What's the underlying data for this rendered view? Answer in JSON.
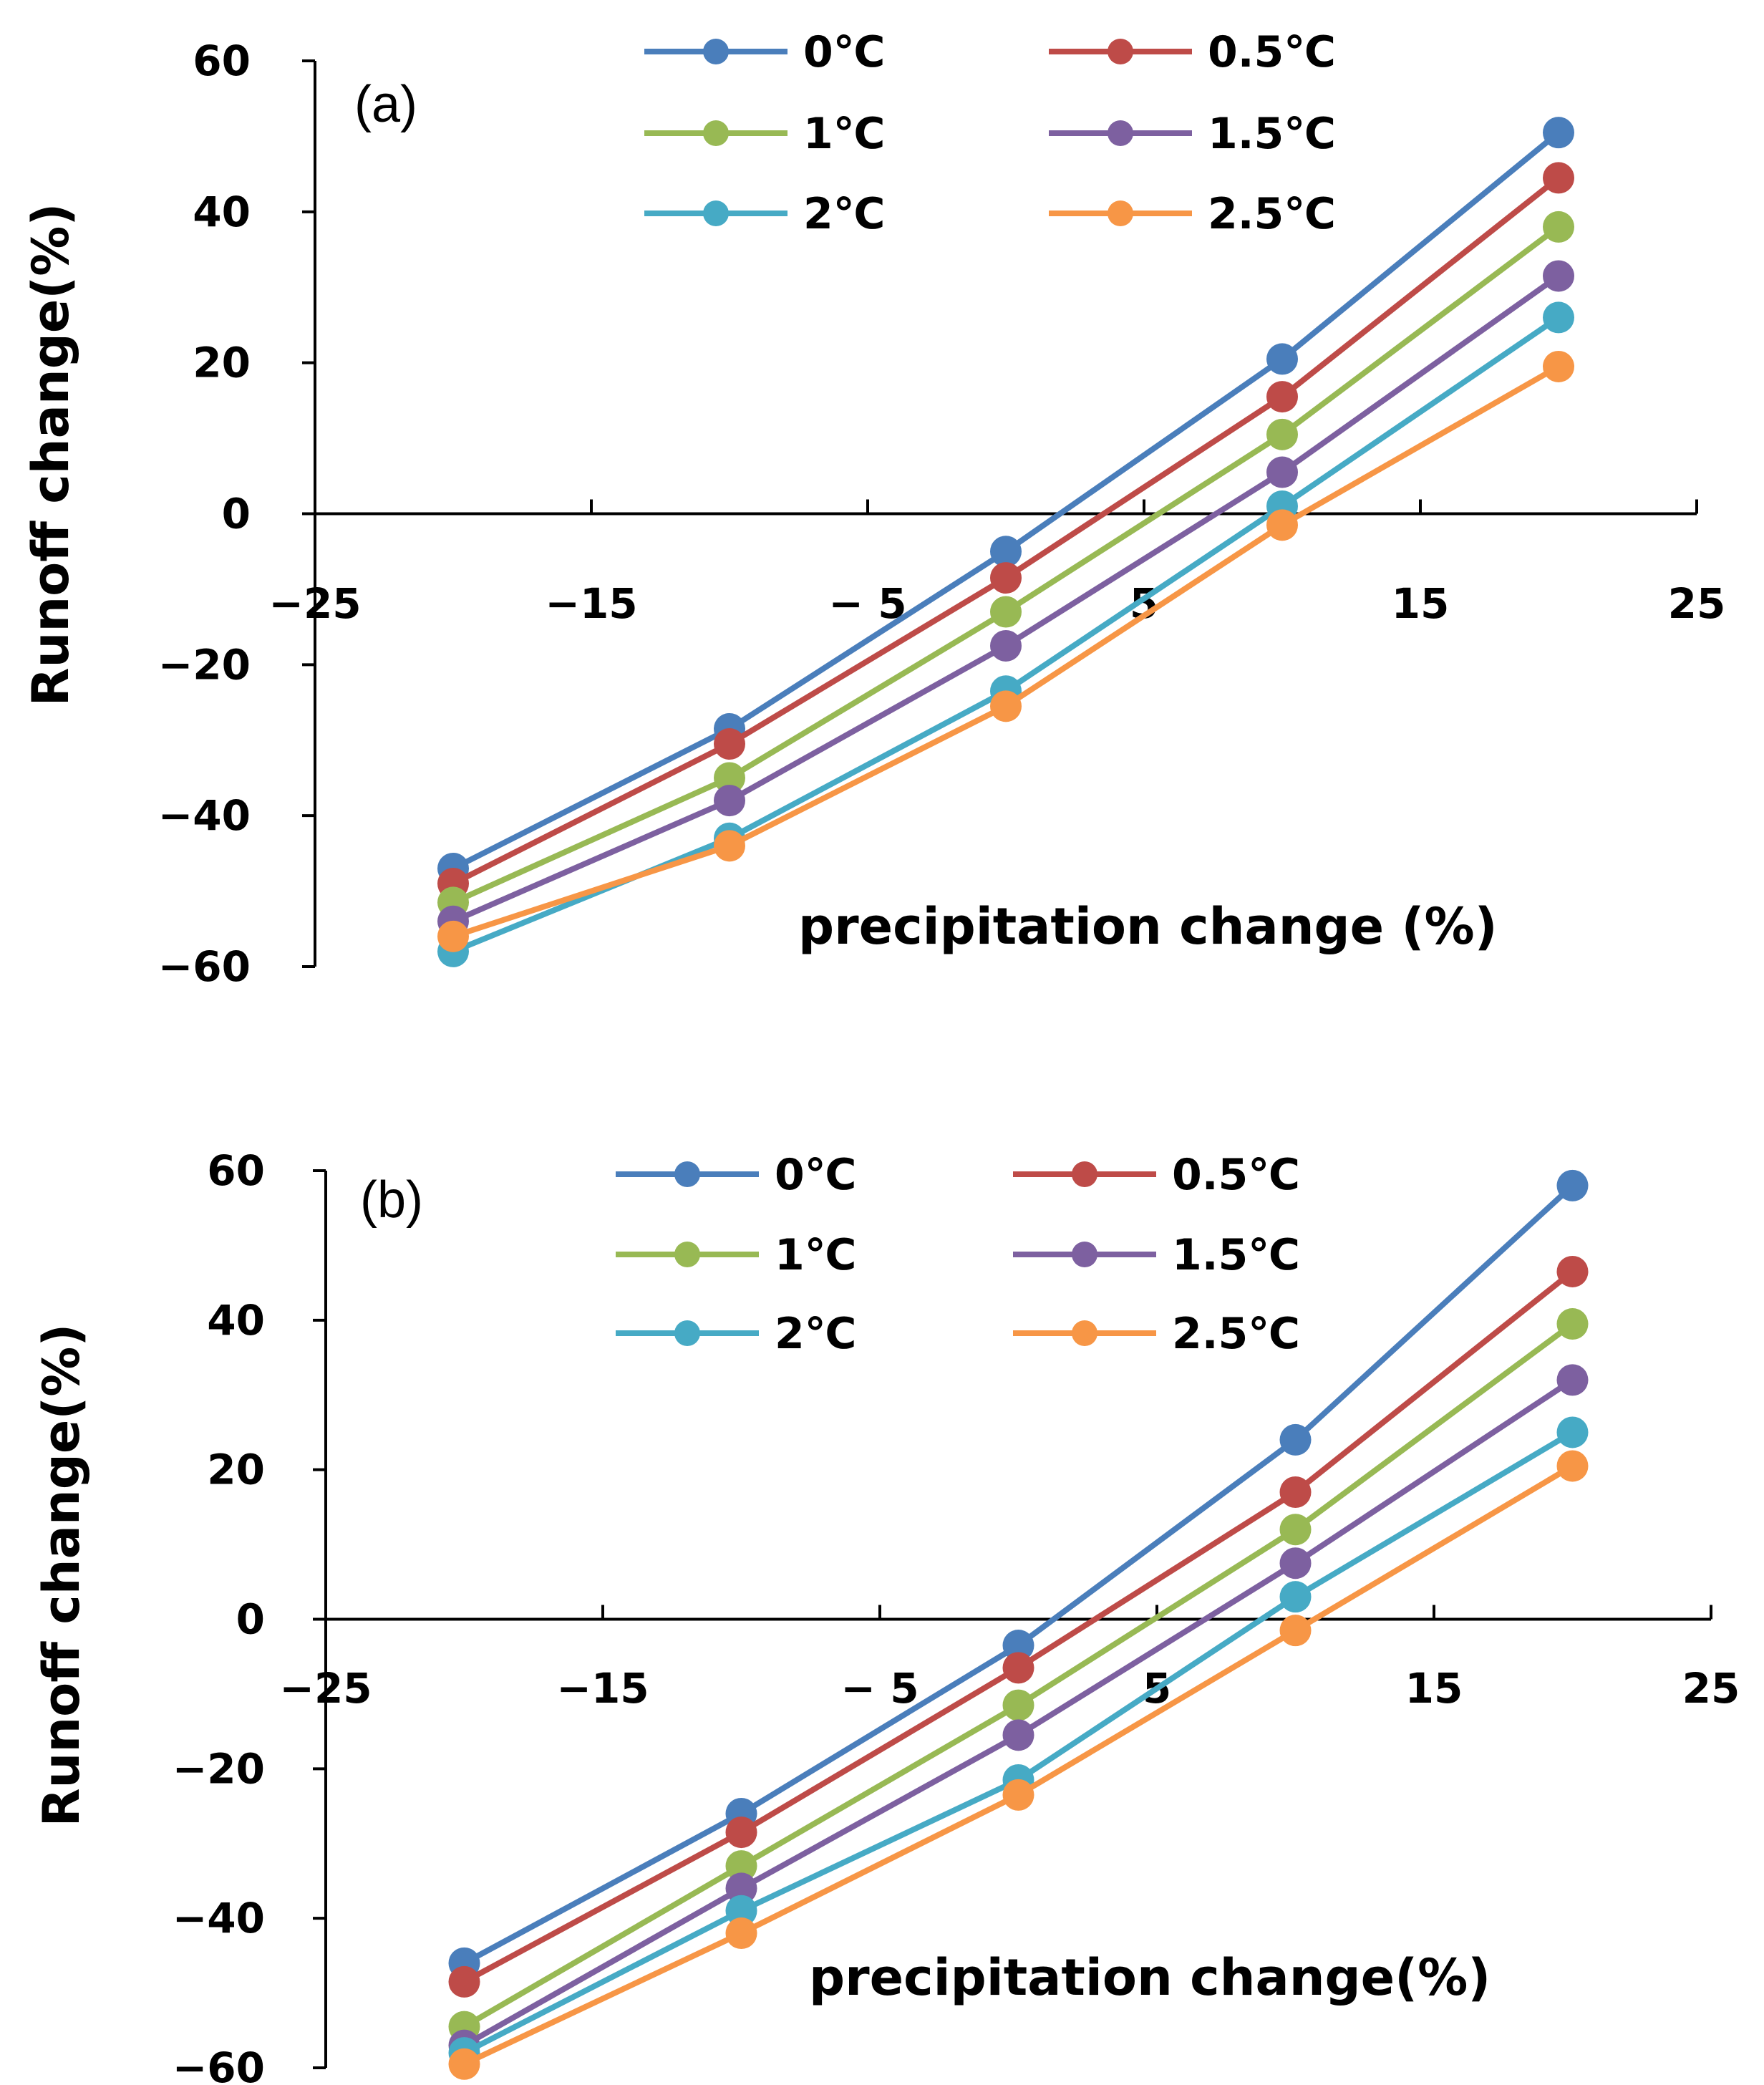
{
  "chart_data": [
    {
      "type": "line",
      "panel_label": "(a)",
      "xlabel": "precipitation change (%)",
      "ylabel": "Runoff change(%)",
      "xlim": [
        -25,
        25
      ],
      "ylim": [
        -60,
        60
      ],
      "x_ticks": [
        -25,
        -15,
        -5,
        5,
        15,
        25
      ],
      "x_tick_labels": [
        "−25",
        "−15",
        "− 5",
        "5",
        "15",
        "25"
      ],
      "y_ticks": [
        60,
        40,
        20,
        0,
        -20,
        -40,
        -60
      ],
      "y_tick_labels": [
        "60",
        "40",
        "20",
        "0",
        "−20",
        "−40",
        "−60"
      ],
      "legend_position": "top",
      "x": [
        -20,
        -10,
        0,
        10,
        20
      ],
      "series": [
        {
          "name": "0℃",
          "color": "#4a7ebb",
          "values": [
            -47,
            -28.5,
            -5,
            20.5,
            50.5
          ]
        },
        {
          "name": "0.5℃",
          "color": "#be4b48",
          "values": [
            -49,
            -30.5,
            -8.5,
            15.5,
            44.5
          ]
        },
        {
          "name": "1℃",
          "color": "#98b954",
          "values": [
            -51.5,
            -35,
            -13,
            10.5,
            38
          ]
        },
        {
          "name": "1.5℃",
          "color": "#7d60a0",
          "values": [
            -54,
            -38,
            -17.5,
            5.5,
            31.5
          ]
        },
        {
          "name": "2℃",
          "color": "#46aac5",
          "values": [
            -58,
            -43,
            -23.5,
            1,
            26
          ]
        },
        {
          "name": "2.5℃",
          "color": "#f79646",
          "values": [
            -56,
            -44,
            -25.5,
            -1.5,
            19.5
          ]
        }
      ]
    },
    {
      "type": "line",
      "panel_label": "(b)",
      "xlabel": "precipitation change(%)",
      "ylabel": "Runoff change(%)",
      "xlim": [
        -25,
        25
      ],
      "ylim": [
        -60,
        60
      ],
      "x_ticks": [
        -25,
        -15,
        -5,
        5,
        15,
        25
      ],
      "x_tick_labels": [
        "−25",
        "−15",
        "− 5",
        "5",
        "15",
        "25"
      ],
      "y_ticks": [
        60,
        40,
        20,
        0,
        -20,
        -40,
        -60
      ],
      "y_tick_labels": [
        "60",
        "40",
        "20",
        "0",
        "−20",
        "−40",
        "−60"
      ],
      "legend_position": "top",
      "x": [
        -20,
        -10,
        0,
        10,
        20
      ],
      "series": [
        {
          "name": "0℃",
          "color": "#4a7ebb",
          "values": [
            -46,
            -26,
            -3.5,
            24,
            58
          ]
        },
        {
          "name": "0.5℃",
          "color": "#be4b48",
          "values": [
            -48.5,
            -28.5,
            -6.5,
            17,
            46.5
          ]
        },
        {
          "name": "1℃",
          "color": "#98b954",
          "values": [
            -54.5,
            -33,
            -11.5,
            12,
            39.5
          ]
        },
        {
          "name": "1.5℃",
          "color": "#7d60a0",
          "values": [
            -57,
            -36,
            -15.5,
            7.5,
            32
          ]
        },
        {
          "name": "2℃",
          "color": "#46aac5",
          "values": [
            -58,
            -39,
            -21.5,
            3,
            25
          ]
        },
        {
          "name": "2.5℃",
          "color": "#f79646",
          "values": [
            -59.5,
            -42,
            -23.5,
            -1.5,
            20.5
          ]
        }
      ]
    }
  ]
}
